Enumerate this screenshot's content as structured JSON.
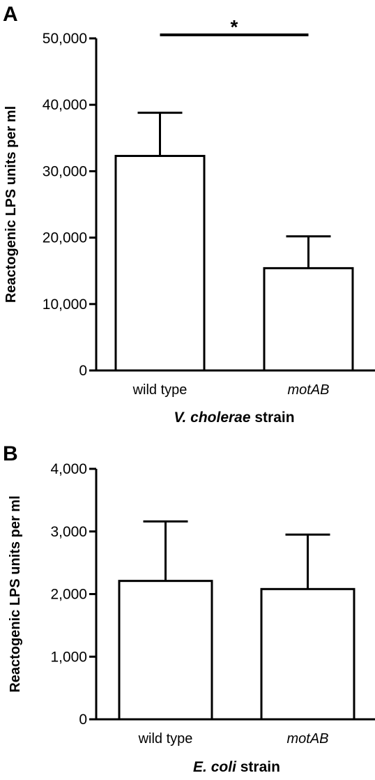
{
  "figure_labels": [
    "A",
    "B"
  ],
  "chart_data": [
    {
      "type": "bar",
      "panel": "A",
      "categories": [
        "wild type",
        "motAB"
      ],
      "category_italic": [
        false,
        true
      ],
      "values": [
        32300,
        15400
      ],
      "error_upper": [
        38800,
        20200
      ],
      "ylim": [
        0,
        50000
      ],
      "yticks": [
        0,
        10000,
        20000,
        30000,
        40000,
        50000
      ],
      "ytick_labels": [
        "0",
        "10,000",
        "20,000",
        "30,000",
        "40,000",
        "50,000"
      ],
      "ylabel": "Reactogenic LPS units per ml",
      "xlabel_italic": "V. cholerae",
      "xlabel_rest": " strain",
      "significance": {
        "between": [
          0,
          1
        ],
        "level": 50000,
        "label": "*"
      },
      "grid": false
    },
    {
      "type": "bar",
      "panel": "B",
      "categories": [
        "wild type",
        "motAB"
      ],
      "category_italic": [
        false,
        true
      ],
      "values": [
        2210,
        2080
      ],
      "error_upper": [
        3160,
        2950
      ],
      "ylim": [
        0,
        4000
      ],
      "yticks": [
        0,
        1000,
        2000,
        3000,
        4000
      ],
      "ytick_labels": [
        "0",
        "1,000",
        "2,000",
        "3,000",
        "4,000"
      ],
      "ylabel": "Reactogenic LPS units per ml",
      "xlabel_italic": "E. coli",
      "xlabel_rest": " strain",
      "grid": false
    }
  ]
}
